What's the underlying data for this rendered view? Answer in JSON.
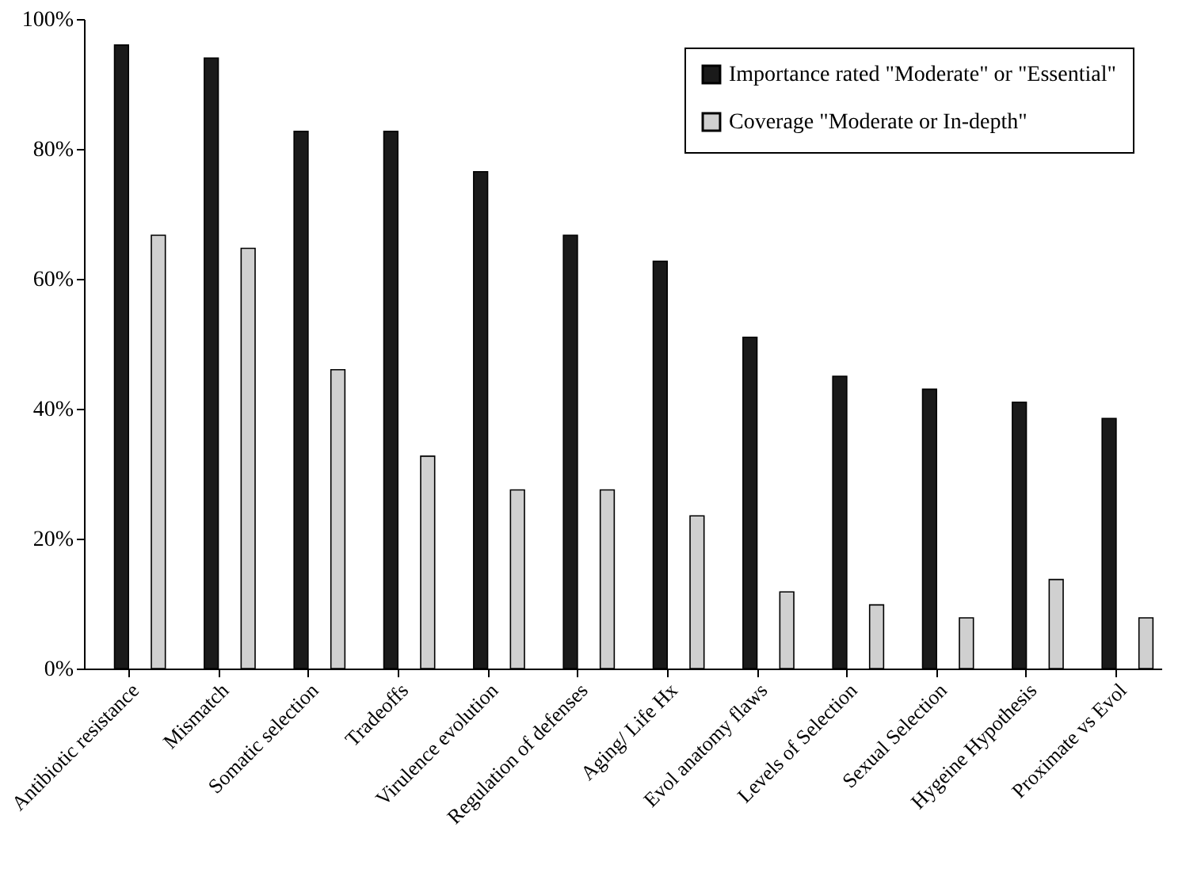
{
  "chart_data": {
    "type": "bar",
    "categories": [
      "Antibiotic resistance",
      "Mismatch",
      "Somatic selection",
      "Tradeoffs",
      "Virulence evolution",
      "Regulation of defenses",
      "Aging/ Life Hx",
      "Evol  anatomy flaws",
      "Levels of Selection",
      "Sexual Selection",
      "Hygeine Hypothesis",
      "Proximate vs Evol"
    ],
    "series": [
      {
        "name": "Importance rated \"Moderate\" or \"Essential\"",
        "color": "#1a1a1a",
        "values": [
          96,
          94,
          82.7,
          82.7,
          76.5,
          66.7,
          62.7,
          51,
          45,
          43,
          41,
          38.5
        ]
      },
      {
        "name": "Coverage \"Moderate or In-depth\"",
        "color": "#d0d0d0",
        "values": [
          66.7,
          64.7,
          46,
          32.7,
          27.5,
          27.5,
          23.5,
          11.8,
          9.8,
          7.8,
          13.7,
          7.8
        ]
      }
    ],
    "ylim": [
      0,
      100
    ],
    "yticks": [
      {
        "value": 0,
        "label": "0%"
      },
      {
        "value": 20,
        "label": "20%"
      },
      {
        "value": 40,
        "label": "40%"
      },
      {
        "value": 60,
        "label": "60%"
      },
      {
        "value": 80,
        "label": "80%"
      },
      {
        "value": 100,
        "label": "100%"
      }
    ],
    "grid": false,
    "legend": "top right"
  }
}
